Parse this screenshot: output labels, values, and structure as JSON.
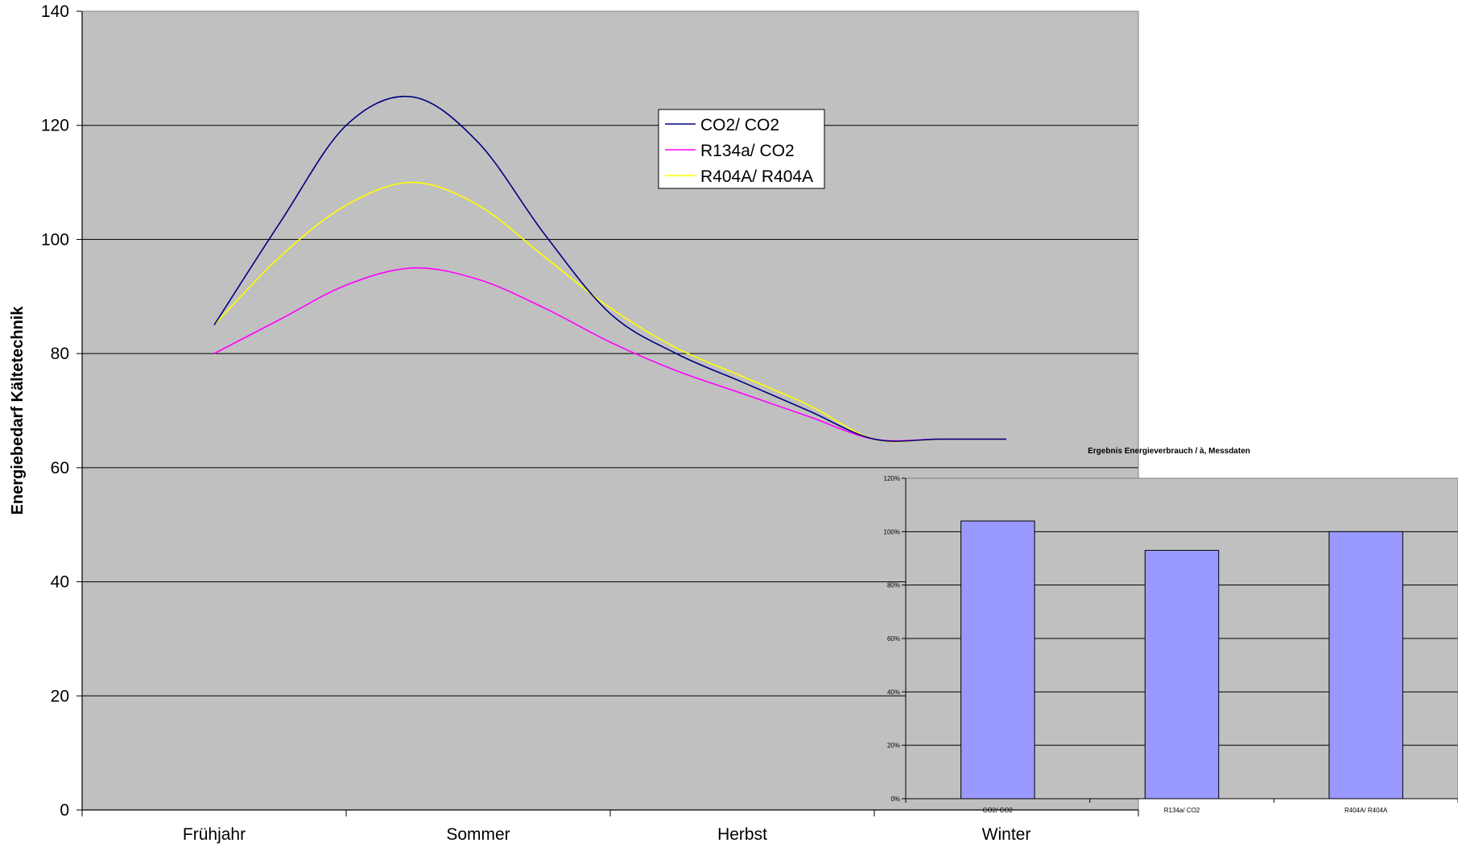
{
  "chart_data": [
    {
      "type": "line",
      "title": "",
      "xlabel": "",
      "ylabel": "Energiebedarf Kältetechnik",
      "ylim": [
        0,
        140
      ],
      "yticks": [
        0,
        20,
        40,
        60,
        80,
        100,
        120,
        140
      ],
      "categories": [
        "Frühjahr",
        "Sommer",
        "Herbst",
        "Winter"
      ],
      "x": [
        0,
        0.25,
        0.5,
        0.75,
        1.0,
        1.25,
        1.5,
        1.75,
        2.0,
        2.25,
        2.5,
        2.75,
        3.0
      ],
      "series": [
        {
          "name": "CO2/ CO2",
          "color": "#000080",
          "values": [
            85,
            103,
            120,
            125,
            117,
            101,
            87,
            80,
            75,
            70,
            65,
            65,
            65
          ]
        },
        {
          "name": "R134a/ CO2",
          "color": "#ff00ff",
          "values": [
            80,
            86,
            92,
            95,
            93,
            88,
            82,
            77,
            73,
            69,
            65,
            65,
            65
          ]
        },
        {
          "name": "R404A/ R404A",
          "color": "#ffff00",
          "values": [
            85,
            97,
            106,
            110,
            106,
            97,
            88,
            81,
            76,
            71,
            65,
            65,
            65
          ]
        }
      ],
      "series_x_end": 3.0,
      "grid": true,
      "background": "#c0c0c0",
      "legend_placement": "top-center"
    },
    {
      "type": "bar",
      "title": "Ergebnis Energieverbrauch / à, Messdaten",
      "categories": [
        "CO2/ CO2",
        "R134a/ CO2",
        "R404A/ R404A"
      ],
      "values": [
        104,
        93,
        100
      ],
      "unit": "%",
      "ylim": [
        0,
        120
      ],
      "yticks": [
        "0%",
        "20%",
        "40%",
        "60%",
        "80%",
        "100%",
        "120%"
      ],
      "bar_color": "#9999ff",
      "background": "#c0c0c0",
      "grid": true
    }
  ]
}
